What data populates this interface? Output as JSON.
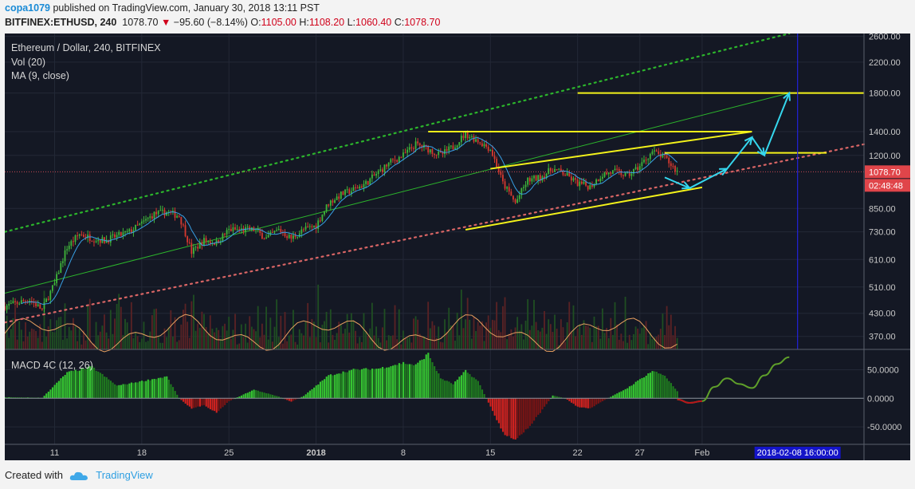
{
  "header": {
    "user": "copa1079",
    "published": " published on TradingView.com, January 30, 2018 13:11 PST",
    "symbol": "BITFINEX:ETHUSD, 240",
    "price": "1078.70",
    "arrow": "▼",
    "change": "−95.60 (−8.14%)",
    "o_label": "O:",
    "o_value": "1105.00",
    "h_label": "H:",
    "h_value": "1108.20",
    "l_label": "L:",
    "l_value": "1060.40",
    "c_label": "C:",
    "c_value": "1078.70"
  },
  "legend": {
    "title": "Ethereum / Dollar, 240, BITFINEX",
    "vol": "Vol (20)",
    "ma": "MA (9, close)",
    "macd": "MACD 4C (12, 26)"
  },
  "footer": {
    "created": "Created with",
    "brand": "TradingView"
  },
  "colors": {
    "background": "#141824",
    "up": "#3fb53a",
    "down": "#d6392f",
    "ma": "#38a0e6",
    "annotation_yellow": "#f3f21a",
    "annotation_arrow": "#35d7ee",
    "channel_green": "#2cb52c",
    "channel_red": "#d96565",
    "marker_line": "#2222dd",
    "price_tag": "#e0454a"
  },
  "chart_data": [
    {
      "type": "candlestick",
      "title": "Ethereum / Dollar, 240, BITFINEX",
      "scale": "log",
      "ylim": [
        340,
        2650
      ],
      "y_ticks": [
        "2600.00",
        "2200.00",
        "1800.00",
        "1400.00",
        "1200.00",
        "850.00",
        "730.00",
        "610.00",
        "510.00",
        "430.00",
        "370.00"
      ],
      "y_tick_values": [
        2600,
        2200,
        1800,
        1400,
        1200,
        850,
        730,
        610,
        510,
        430,
        370
      ],
      "x_ticks": [
        "11",
        "18",
        "25",
        "2018",
        "8",
        "15",
        "22",
        "27",
        "Feb"
      ],
      "x_tick_dates": [
        "2017-12-11",
        "2017-12-18",
        "2017-12-25",
        "2018-01-01",
        "2018-01-08",
        "2018-01-15",
        "2018-01-22",
        "2018-01-27",
        "2018-02-01"
      ],
      "xlim": [
        "2017-12-07",
        "2018-02-14"
      ],
      "last_price": "1078.70",
      "last_price_value": 1078.7,
      "countdown": "02:48:48",
      "cursor_date_label": "2018-02-08 16:00:00",
      "cursor_date": "2018-02-08 16:00",
      "price_path": [
        [
          "2017-12-07",
          450
        ],
        [
          "2017-12-09",
          470
        ],
        [
          "2017-12-10",
          440
        ],
        [
          "2017-12-11",
          520
        ],
        [
          "2017-12-12",
          660
        ],
        [
          "2017-12-13",
          720
        ],
        [
          "2017-12-14",
          700
        ],
        [
          "2017-12-15",
          690
        ],
        [
          "2017-12-17",
          730
        ],
        [
          "2017-12-18",
          770
        ],
        [
          "2017-12-19",
          820
        ],
        [
          "2017-12-20",
          830
        ],
        [
          "2017-12-21",
          810
        ],
        [
          "2017-12-22",
          640
        ],
        [
          "2017-12-23",
          690
        ],
        [
          "2017-12-24",
          680
        ],
        [
          "2017-12-25",
          740
        ],
        [
          "2017-12-27",
          740
        ],
        [
          "2017-12-28",
          700
        ],
        [
          "2017-12-29",
          740
        ],
        [
          "2017-12-30",
          700
        ],
        [
          "2017-12-31",
          740
        ],
        [
          "2018-01-01",
          760
        ],
        [
          "2018-01-02",
          880
        ],
        [
          "2018-01-03",
          930
        ],
        [
          "2018-01-04",
          960
        ],
        [
          "2018-01-05",
          1000
        ],
        [
          "2018-01-07",
          1150
        ],
        [
          "2018-01-08",
          1200
        ],
        [
          "2018-01-09",
          1290
        ],
        [
          "2018-01-10",
          1250
        ],
        [
          "2018-01-11",
          1200
        ],
        [
          "2018-01-12",
          1270
        ],
        [
          "2018-01-13",
          1380
        ],
        [
          "2018-01-14",
          1320
        ],
        [
          "2018-01-15",
          1250
        ],
        [
          "2018-01-16",
          1000
        ],
        [
          "2018-01-17",
          880
        ],
        [
          "2018-01-18",
          1020
        ],
        [
          "2018-01-19",
          1040
        ],
        [
          "2018-01-20",
          1100
        ],
        [
          "2018-01-21",
          1060
        ],
        [
          "2018-01-22",
          1000
        ],
        [
          "2018-01-23",
          980
        ],
        [
          "2018-01-24",
          1060
        ],
        [
          "2018-01-25",
          1080
        ],
        [
          "2018-01-26",
          1050
        ],
        [
          "2018-01-27",
          1120
        ],
        [
          "2018-01-28",
          1230
        ],
        [
          "2018-01-29",
          1180
        ],
        [
          "2018-01-30",
          1078.7
        ]
      ],
      "annotations": [
        {
          "kind": "hline",
          "price": 1400,
          "from": "2018-01-10",
          "to": "2018-02-05",
          "color": "yellow"
        },
        {
          "kind": "hline",
          "price": 1220,
          "from": "2018-01-29",
          "to": "2018-02-11",
          "color": "yellow"
        },
        {
          "kind": "hline",
          "price": 1800,
          "from": "2018-01-22",
          "to": "2018-02-14",
          "color": "yellow"
        },
        {
          "kind": "trendline",
          "from": [
            "2018-01-15",
            1100
          ],
          "to": [
            "2018-02-05",
            1400
          ],
          "color": "yellow"
        },
        {
          "kind": "trendline",
          "from": [
            "2018-01-13",
            740
          ],
          "to": [
            "2018-02-01",
            975
          ],
          "color": "yellow"
        },
        {
          "kind": "channel_top",
          "from": [
            "2017-12-07",
            730
          ],
          "to": [
            "2018-02-08",
            2650
          ],
          "color": "green",
          "style": "dotted"
        },
        {
          "kind": "channel_mid",
          "from": [
            "2017-12-07",
            490
          ],
          "to": [
            "2018-02-08",
            1800
          ],
          "color": "green",
          "style": "solid"
        },
        {
          "kind": "channel_bottom",
          "from": [
            "2017-12-07",
            405
          ],
          "to": [
            "2018-02-14",
            1290
          ],
          "color": "red",
          "style": "dotted"
        },
        {
          "kind": "arrow_path",
          "points": [
            [
              "2018-01-29",
              1040
            ],
            [
              "2018-01-31",
              970
            ],
            [
              "2018-02-03",
              1100
            ],
            [
              "2018-02-05",
              1350
            ],
            [
              "2018-02-06",
              1200
            ],
            [
              "2018-02-08",
              1800
            ]
          ]
        }
      ]
    },
    {
      "type": "bar",
      "title": "MACD 4C (12, 26)",
      "y_ticks": [
        "50.0000",
        "0.0000",
        "-50.0000"
      ],
      "y_tick_values": [
        50,
        0,
        -50
      ],
      "ylim": [
        -75,
        80
      ],
      "histogram_path": [
        [
          "2017-12-07",
          2
        ],
        [
          "2017-12-10",
          1
        ],
        [
          "2017-12-12",
          45
        ],
        [
          "2017-12-14",
          55
        ],
        [
          "2017-12-16",
          22
        ],
        [
          "2017-12-18",
          30
        ],
        [
          "2017-12-20",
          38
        ],
        [
          "2017-12-21",
          0
        ],
        [
          "2017-12-22",
          -18
        ],
        [
          "2017-12-23",
          -12
        ],
        [
          "2017-12-24",
          -25
        ],
        [
          "2017-12-25",
          -5
        ],
        [
          "2017-12-27",
          15
        ],
        [
          "2017-12-29",
          3
        ],
        [
          "2017-12-30",
          -6
        ],
        [
          "2017-12-31",
          4
        ],
        [
          "2018-01-02",
          40
        ],
        [
          "2018-01-04",
          50
        ],
        [
          "2018-01-06",
          52
        ],
        [
          "2018-01-08",
          62
        ],
        [
          "2018-01-09",
          58
        ],
        [
          "2018-01-10",
          78
        ],
        [
          "2018-01-11",
          35
        ],
        [
          "2018-01-12",
          25
        ],
        [
          "2018-01-13",
          48
        ],
        [
          "2018-01-14",
          30
        ],
        [
          "2018-01-15",
          -15
        ],
        [
          "2018-01-16",
          -60
        ],
        [
          "2018-01-17",
          -72
        ],
        [
          "2018-01-18",
          -52
        ],
        [
          "2018-01-19",
          -25
        ],
        [
          "2018-01-20",
          5
        ],
        [
          "2018-01-21",
          0
        ],
        [
          "2018-01-22",
          -15
        ],
        [
          "2018-01-23",
          -18
        ],
        [
          "2018-01-24",
          -5
        ],
        [
          "2018-01-26",
          18
        ],
        [
          "2018-01-28",
          48
        ],
        [
          "2018-01-29",
          40
        ],
        [
          "2018-01-30",
          12
        ]
      ],
      "projection": [
        [
          "2018-01-30",
          -2
        ],
        [
          "2018-01-31",
          -8
        ],
        [
          "2018-02-01",
          -5
        ],
        [
          "2018-02-02",
          20
        ],
        [
          "2018-02-03",
          35
        ],
        [
          "2018-02-04",
          25
        ],
        [
          "2018-02-05",
          18
        ],
        [
          "2018-02-06",
          40
        ],
        [
          "2018-02-07",
          60
        ],
        [
          "2018-02-08",
          72
        ]
      ]
    }
  ]
}
